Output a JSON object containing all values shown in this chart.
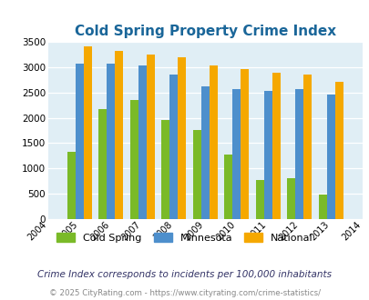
{
  "title": "Cold Spring Property Crime Index",
  "years": [
    2004,
    2005,
    2006,
    2007,
    2008,
    2009,
    2010,
    2011,
    2012,
    2013,
    2014
  ],
  "bar_years": [
    2005,
    2006,
    2007,
    2008,
    2009,
    2010,
    2011,
    2012,
    2013
  ],
  "cold_spring": [
    1320,
    2180,
    2350,
    1960,
    1760,
    1280,
    780,
    800,
    490
  ],
  "minnesota": [
    3080,
    3080,
    3040,
    2850,
    2630,
    2570,
    2540,
    2560,
    2460
  ],
  "national": [
    3420,
    3330,
    3260,
    3200,
    3030,
    2960,
    2890,
    2850,
    2720
  ],
  "color_cold_spring": "#7aba28",
  "color_minnesota": "#4d8fcc",
  "color_national": "#f5a800",
  "title_color": "#1a6699",
  "bg_color": "#e0eef5",
  "ylim": [
    0,
    3500
  ],
  "yticks": [
    0,
    500,
    1000,
    1500,
    2000,
    2500,
    3000,
    3500
  ],
  "subtitle": "Crime Index corresponds to incidents per 100,000 inhabitants",
  "footer": "© 2025 CityRating.com - https://www.cityrating.com/crime-statistics/",
  "legend_labels": [
    "Cold Spring",
    "Minnesota",
    "National"
  ]
}
